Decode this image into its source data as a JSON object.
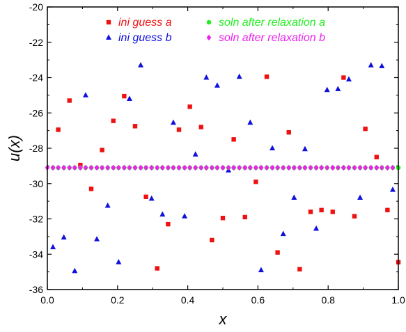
{
  "chart_data": {
    "type": "scatter",
    "xlabel": "x",
    "ylabel": "u(x)",
    "xlim": [
      0.0,
      1.0
    ],
    "ylim": [
      -36,
      -20
    ],
    "x_ticks": [
      "0.0",
      "0.2",
      "0.4",
      "0.6",
      "0.8",
      "1.0"
    ],
    "y_ticks": [
      "-20",
      "-22",
      "-24",
      "-26",
      "-28",
      "-30",
      "-32",
      "-34",
      "-36"
    ],
    "grid": false,
    "legend_position": "top",
    "series": [
      {
        "name": "ini guess a",
        "marker": "square",
        "color": "#ee1111",
        "x": [
          0.031,
          0.063,
          0.094,
          0.125,
          0.156,
          0.188,
          0.219,
          0.25,
          0.281,
          0.313,
          0.344,
          0.375,
          0.406,
          0.438,
          0.469,
          0.5,
          0.531,
          0.563,
          0.594,
          0.625,
          0.656,
          0.688,
          0.719,
          0.75,
          0.781,
          0.813,
          0.844,
          0.875,
          0.906,
          0.938,
          0.969,
          1.0
        ],
        "y": [
          -26.95,
          -25.3,
          -28.95,
          -30.3,
          -28.1,
          -26.45,
          -25.05,
          -26.75,
          -30.75,
          -34.8,
          -32.3,
          -26.95,
          -25.65,
          -26.8,
          -33.2,
          -31.95,
          -27.5,
          -31.9,
          -29.9,
          -23.95,
          -33.9,
          -27.1,
          -34.85,
          -31.6,
          -31.5,
          -31.6,
          -24.0,
          -31.85,
          -26.9,
          -28.5,
          -31.5,
          -34.45
        ]
      },
      {
        "name": "ini guess b",
        "marker": "triangle",
        "color": "#1111dd",
        "x": [
          0.016,
          0.047,
          0.078,
          0.109,
          0.141,
          0.172,
          0.203,
          0.234,
          0.266,
          0.297,
          0.328,
          0.359,
          0.391,
          0.422,
          0.453,
          0.484,
          0.516,
          0.547,
          0.578,
          0.609,
          0.641,
          0.672,
          0.703,
          0.734,
          0.766,
          0.797,
          0.828,
          0.859,
          0.891,
          0.922,
          0.953,
          0.984
        ],
        "y": [
          -33.6,
          -33.05,
          -34.95,
          -25.0,
          -33.15,
          -31.25,
          -34.45,
          -25.2,
          -23.3,
          -30.85,
          -31.75,
          -26.55,
          -31.85,
          -28.35,
          -24.0,
          -24.45,
          -29.25,
          -23.95,
          -26.55,
          -34.9,
          -28.0,
          -32.85,
          -30.8,
          -28.05,
          -32.55,
          -24.7,
          -24.65,
          -24.1,
          -30.8,
          -23.3,
          -23.35,
          -30.35
        ]
      },
      {
        "name": "soln after relaxation a",
        "marker": "circle",
        "color": "#22ee22",
        "x": [
          0.016,
          0.031,
          0.047,
          0.063,
          0.078,
          0.094,
          0.109,
          0.125,
          0.141,
          0.156,
          0.172,
          0.188,
          0.203,
          0.219,
          0.234,
          0.25,
          0.266,
          0.281,
          0.297,
          0.313,
          0.328,
          0.344,
          0.359,
          0.375,
          0.391,
          0.406,
          0.422,
          0.438,
          0.453,
          0.469,
          0.484,
          0.5,
          0.516,
          0.531,
          0.547,
          0.563,
          0.578,
          0.594,
          0.609,
          0.625,
          0.641,
          0.656,
          0.672,
          0.688,
          0.703,
          0.719,
          0.734,
          0.75,
          0.766,
          0.781,
          0.797,
          0.813,
          0.828,
          0.844,
          0.859,
          0.875,
          0.891,
          0.906,
          0.922,
          0.938,
          0.953,
          0.969,
          0.984,
          1.0
        ],
        "y_constant": -29.1
      },
      {
        "name": "soln after relaxation b",
        "marker": "diamond",
        "color": "#ee22ee",
        "x": [
          0.0,
          0.016,
          0.031,
          0.047,
          0.063,
          0.078,
          0.094,
          0.109,
          0.125,
          0.141,
          0.156,
          0.172,
          0.188,
          0.203,
          0.219,
          0.234,
          0.25,
          0.266,
          0.281,
          0.297,
          0.313,
          0.328,
          0.344,
          0.359,
          0.375,
          0.391,
          0.406,
          0.422,
          0.438,
          0.453,
          0.469,
          0.484,
          0.5,
          0.516,
          0.531,
          0.547,
          0.563,
          0.578,
          0.594,
          0.609,
          0.625,
          0.641,
          0.656,
          0.672,
          0.688,
          0.703,
          0.719,
          0.734,
          0.75,
          0.766,
          0.781,
          0.797,
          0.813,
          0.828,
          0.844,
          0.859,
          0.875,
          0.891,
          0.906,
          0.922,
          0.938,
          0.953,
          0.969,
          0.984
        ],
        "y_constant": -29.1
      }
    ]
  }
}
